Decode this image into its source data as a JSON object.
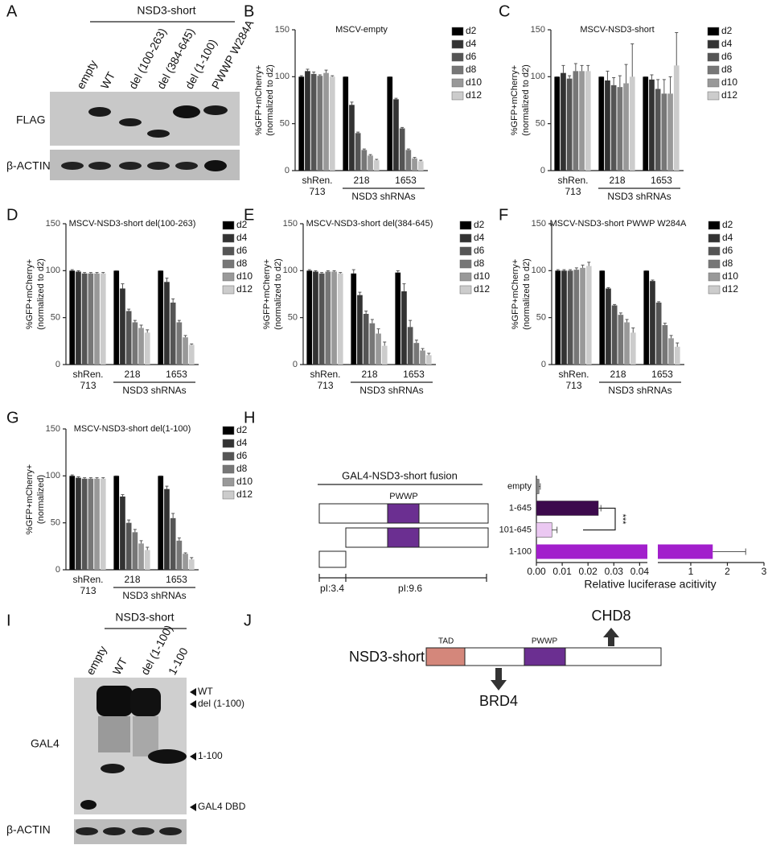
{
  "panel_labels": [
    "A",
    "B",
    "C",
    "D",
    "E",
    "F",
    "G",
    "H",
    "I",
    "J"
  ],
  "blot_a": {
    "header": "NSD3-short",
    "lanes": [
      "empty",
      "WT",
      "del (100-263)",
      "del (384-645)",
      "del (1-100)",
      "PWWP W284A"
    ],
    "rows": [
      "FLAG",
      "β-ACTIN"
    ]
  },
  "blot_i": {
    "header": "NSD3-short",
    "lanes": [
      "empty",
      "WT",
      "del (1-100)",
      "1-100"
    ],
    "rows": [
      "GAL4",
      "β-ACTIN"
    ],
    "markers": [
      "WT",
      "del (1-100)",
      "1-100",
      "GAL4 DBD"
    ]
  },
  "fusion_diagram": {
    "title": "GAL4-NSD3-short fusion",
    "domain": "PWWP",
    "pi_labels": [
      "pI:3.4",
      "pI:9.6"
    ]
  },
  "diagram_j": {
    "protein": "NSD3-short",
    "domains": [
      "TAD",
      "PWWP"
    ],
    "partners": [
      "CHD8",
      "BRD4"
    ]
  },
  "chart_data": [
    {
      "type": "bar",
      "title": "MSCV-empty",
      "ylabel": [
        "%GFP+mCherry+",
        "(normalized to d2)"
      ],
      "categories": [
        [
          "shRen.",
          "713"
        ],
        [
          "218"
        ],
        [
          "1653"
        ]
      ],
      "group_label": "NSD3 shRNAs",
      "ylim": [
        0,
        150
      ],
      "yticks": [
        0,
        50,
        100,
        150
      ],
      "series": [
        {
          "name": "d2",
          "color": "#000000",
          "values": [
            100,
            100,
            100
          ],
          "errors": [
            1,
            0,
            0
          ]
        },
        {
          "name": "d4",
          "color": "#333333",
          "values": [
            106,
            70,
            76
          ],
          "errors": [
            2,
            3,
            1
          ]
        },
        {
          "name": "d6",
          "color": "#555555",
          "values": [
            103,
            40,
            45
          ],
          "errors": [
            2,
            1,
            1
          ]
        },
        {
          "name": "d8",
          "color": "#777777",
          "values": [
            101,
            22,
            22
          ],
          "errors": [
            1,
            1,
            1
          ]
        },
        {
          "name": "d10",
          "color": "#999999",
          "values": [
            104,
            16,
            13
          ],
          "errors": [
            3,
            1,
            1
          ]
        },
        {
          "name": "d12",
          "color": "#cccccc",
          "values": [
            100,
            11,
            10
          ],
          "errors": [
            1,
            1,
            1
          ]
        }
      ]
    },
    {
      "type": "bar",
      "title": "MSCV-NSD3-short",
      "ylabel": [
        "%GFP+mCherry+",
        "(normalized to d2)"
      ],
      "categories": [
        [
          "shRen.",
          "713"
        ],
        [
          "218"
        ],
        [
          "1653"
        ]
      ],
      "group_label": "NSD3 shRNAs",
      "ylim": [
        0,
        150
      ],
      "yticks": [
        0,
        50,
        100,
        150
      ],
      "series": [
        {
          "name": "d2",
          "color": "#000000",
          "values": [
            100,
            100,
            100
          ],
          "errors": [
            0,
            0,
            0
          ]
        },
        {
          "name": "d4",
          "color": "#333333",
          "values": [
            104,
            96,
            97
          ],
          "errors": [
            8,
            10,
            5
          ]
        },
        {
          "name": "d6",
          "color": "#555555",
          "values": [
            98,
            91,
            87
          ],
          "errors": [
            3,
            8,
            10
          ]
        },
        {
          "name": "d8",
          "color": "#777777",
          "values": [
            106,
            89,
            82
          ],
          "errors": [
            8,
            12,
            15
          ]
        },
        {
          "name": "d10",
          "color": "#999999",
          "values": [
            106,
            93,
            82
          ],
          "errors": [
            6,
            20,
            18
          ]
        },
        {
          "name": "d12",
          "color": "#cccccc",
          "values": [
            106,
            100,
            112
          ],
          "errors": [
            6,
            35,
            35
          ]
        }
      ]
    },
    {
      "type": "bar",
      "title": "MSCV-NSD3-short del(100-263)",
      "ylabel": [
        "%GFP+mCherry+",
        "(normalized to d2)"
      ],
      "categories": [
        [
          "shRen.",
          "713"
        ],
        [
          "218"
        ],
        [
          "1653"
        ]
      ],
      "group_label": "NSD3 shRNAs",
      "ylim": [
        0,
        150
      ],
      "yticks": [
        0,
        50,
        100,
        150
      ],
      "series": [
        {
          "name": "d2",
          "color": "#000000",
          "values": [
            100,
            100,
            100
          ],
          "errors": [
            1,
            0,
            0
          ]
        },
        {
          "name": "d4",
          "color": "#333333",
          "values": [
            99,
            81,
            88
          ],
          "errors": [
            1,
            5,
            4
          ]
        },
        {
          "name": "d6",
          "color": "#555555",
          "values": [
            97,
            57,
            66
          ],
          "errors": [
            1,
            2,
            4
          ]
        },
        {
          "name": "d8",
          "color": "#777777",
          "values": [
            97,
            45,
            45
          ],
          "errors": [
            1,
            2,
            2
          ]
        },
        {
          "name": "d10",
          "color": "#999999",
          "values": [
            97,
            39,
            29
          ],
          "errors": [
            1,
            3,
            2
          ]
        },
        {
          "name": "d12",
          "color": "#cccccc",
          "values": [
            97,
            34,
            21
          ],
          "errors": [
            1,
            3,
            1
          ]
        }
      ]
    },
    {
      "type": "bar",
      "title": "MSCV-NSD3-short del(384-645)",
      "ylabel": [
        "%GFP+mCherry+",
        "(normalized to d2)"
      ],
      "categories": [
        [
          "shRen.",
          "713"
        ],
        [
          "218"
        ],
        [
          "1653"
        ]
      ],
      "group_label": "NSD3 shRNAs",
      "ylim": [
        0,
        150
      ],
      "yticks": [
        0,
        50,
        100,
        150
      ],
      "series": [
        {
          "name": "d2",
          "color": "#000000",
          "values": [
            100,
            97,
            98
          ],
          "errors": [
            1,
            4,
            2
          ]
        },
        {
          "name": "d4",
          "color": "#333333",
          "values": [
            99,
            74,
            78
          ],
          "errors": [
            1,
            3,
            8
          ]
        },
        {
          "name": "d6",
          "color": "#555555",
          "values": [
            97,
            54,
            40
          ],
          "errors": [
            1,
            3,
            7
          ]
        },
        {
          "name": "d8",
          "color": "#777777",
          "values": [
            99,
            44,
            23
          ],
          "errors": [
            1,
            4,
            3
          ]
        },
        {
          "name": "d10",
          "color": "#999999",
          "values": [
            99,
            33,
            15
          ],
          "errors": [
            1,
            5,
            2
          ]
        },
        {
          "name": "d12",
          "color": "#cccccc",
          "values": [
            97,
            20,
            10
          ],
          "errors": [
            1,
            4,
            2
          ]
        }
      ]
    },
    {
      "type": "bar",
      "title": "MSCV-NSD3-short PWWP W284A",
      "ylabel": [
        "%GFP+mCherry+",
        "(normalized to d2)"
      ],
      "categories": [
        [
          "shRen.",
          "713"
        ],
        [
          "218"
        ],
        [
          "1653"
        ]
      ],
      "group_label": "NSD3 shRNAs",
      "ylim": [
        0,
        150
      ],
      "yticks": [
        0,
        50,
        100,
        150
      ],
      "series": [
        {
          "name": "d2",
          "color": "#000000",
          "values": [
            100,
            100,
            100
          ],
          "errors": [
            1,
            0,
            0
          ]
        },
        {
          "name": "d4",
          "color": "#333333",
          "values": [
            100,
            81,
            89
          ],
          "errors": [
            1,
            1,
            1
          ]
        },
        {
          "name": "d6",
          "color": "#555555",
          "values": [
            100,
            63,
            66
          ],
          "errors": [
            1,
            1,
            1
          ]
        },
        {
          "name": "d8",
          "color": "#777777",
          "values": [
            101,
            53,
            42
          ],
          "errors": [
            2,
            2,
            2
          ]
        },
        {
          "name": "d10",
          "color": "#999999",
          "values": [
            103,
            45,
            28
          ],
          "errors": [
            3,
            3,
            3
          ]
        },
        {
          "name": "d12",
          "color": "#cccccc",
          "values": [
            105,
            34,
            19
          ],
          "errors": [
            4,
            5,
            4
          ]
        }
      ]
    },
    {
      "type": "bar",
      "title": "MSCV-NSD3-short del(1-100)",
      "ylabel": [
        "%GFP+mCherry+",
        "(normalized)"
      ],
      "categories": [
        [
          "shRen.",
          "713"
        ],
        [
          "218"
        ],
        [
          "1653"
        ]
      ],
      "group_label": "NSD3 shRNAs",
      "ylim": [
        0,
        150
      ],
      "yticks": [
        0,
        50,
        100,
        150
      ],
      "series": [
        {
          "name": "d2",
          "color": "#000000",
          "values": [
            100,
            100,
            100
          ],
          "errors": [
            1,
            0,
            0
          ]
        },
        {
          "name": "d4",
          "color": "#333333",
          "values": [
            98,
            78,
            86
          ],
          "errors": [
            1,
            2,
            3
          ]
        },
        {
          "name": "d6",
          "color": "#555555",
          "values": [
            97,
            50,
            55
          ],
          "errors": [
            1,
            3,
            5
          ]
        },
        {
          "name": "d8",
          "color": "#777777",
          "values": [
            97,
            40,
            31
          ],
          "errors": [
            1,
            3,
            3
          ]
        },
        {
          "name": "d10",
          "color": "#999999",
          "values": [
            97,
            28,
            17
          ],
          "errors": [
            1,
            3,
            1
          ]
        },
        {
          "name": "d12",
          "color": "#cccccc",
          "values": [
            97,
            21,
            11
          ],
          "errors": [
            1,
            3,
            2
          ]
        }
      ]
    },
    {
      "type": "barh",
      "xlabel": "Relative luciferase acitivity",
      "categories": [
        "empty",
        "1-645",
        "101-645",
        "1-100"
      ],
      "values": [
        0.001,
        0.024,
        0.006,
        1.6
      ],
      "errors": [
        0.0005,
        0.001,
        0.002,
        0.9
      ],
      "colors": [
        "#888888",
        "#3d0a4d",
        "#ebc8f2",
        "#a21fcc"
      ],
      "xlim": [
        0,
        0.043
      ],
      "xticks": [
        {
          "value": 0,
          "label": "0.00"
        },
        {
          "value": 0.01,
          "label": "0.01"
        },
        {
          "value": 0.02,
          "label": "0.02"
        },
        {
          "value": 0.03,
          "label": "0.03"
        },
        {
          "value": 0.04,
          "label": "0.04"
        }
      ],
      "x2lim": [
        0.1,
        3
      ],
      "x2ticks": [
        1,
        2,
        3
      ],
      "annotation": "***"
    }
  ]
}
